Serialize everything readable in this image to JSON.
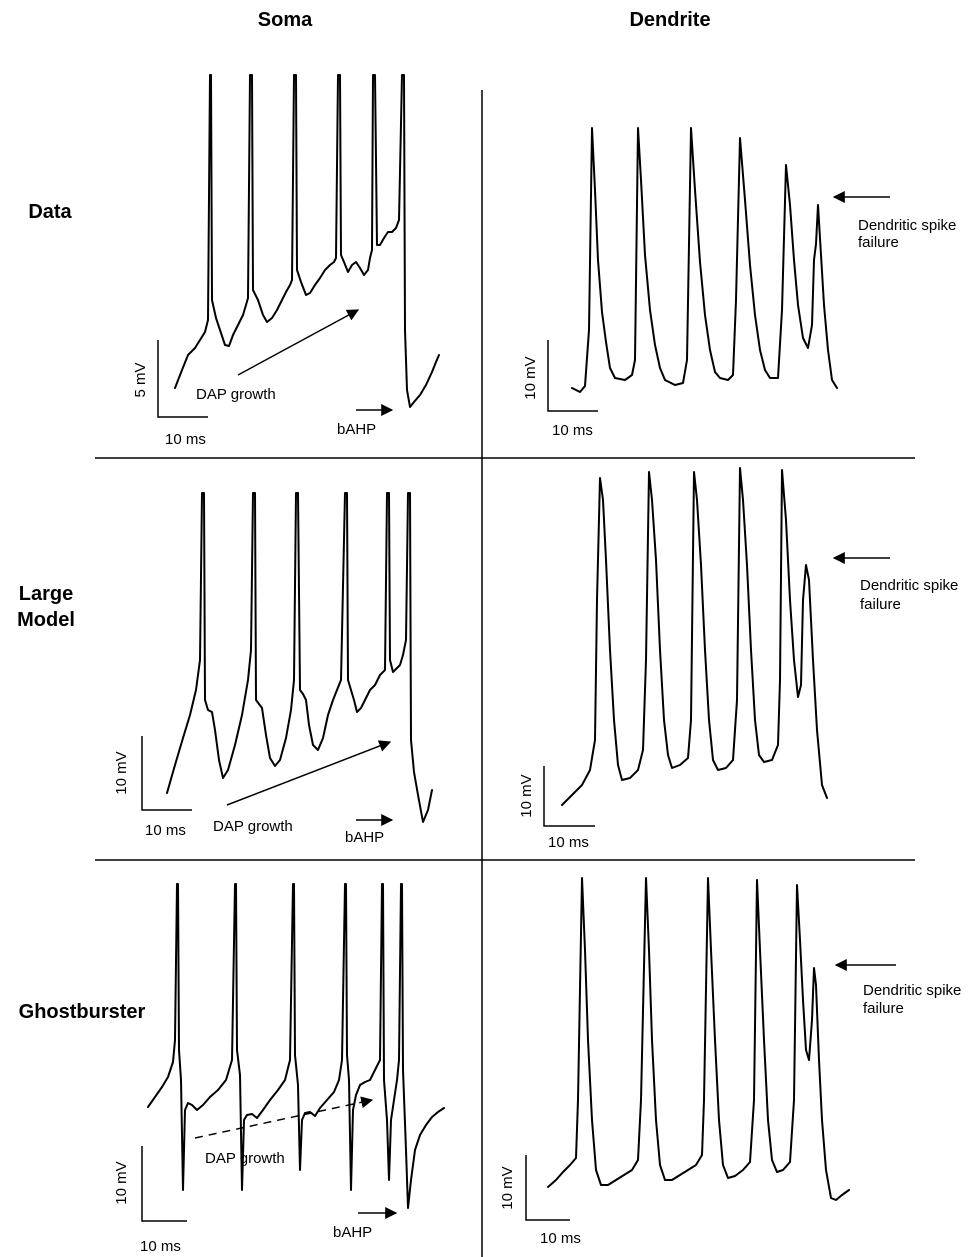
{
  "columns": {
    "soma": "Soma",
    "dendrite": "Dendrite"
  },
  "rows": {
    "data": "Data",
    "large_model_line1": "Large",
    "large_model_line2": "Model",
    "ghostburster": "Ghostburster"
  },
  "annotations": {
    "dap_growth": "DAP growth",
    "bahp": "bAHP",
    "dendritic_spike_failure_line1": "Dendritic spike",
    "dendritic_spike_failure_line2": "failure"
  },
  "scale_bars": {
    "time": "10 ms",
    "voltage_5": "5 mV",
    "voltage_10": "10 mV"
  }
}
